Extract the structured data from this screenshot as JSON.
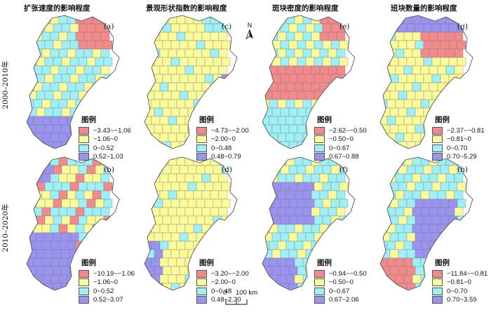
{
  "figure": {
    "columns": [
      {
        "title": "扩张速度的影响程度"
      },
      {
        "title": "景观形状指数的影响程度"
      },
      {
        "title": "斑块密度的影响程度"
      },
      {
        "title": "班块数量的影响程度"
      }
    ],
    "rows": [
      {
        "label": "2000–2010年"
      },
      {
        "label": "2010–2020年"
      }
    ],
    "panels": [
      {
        "letter": "(a)",
        "legend_title": "图例",
        "classes": [
          "−3.43~−1.06",
          "−1.06~0",
          "0~0.52",
          "0.52~1.03"
        ]
      },
      {
        "letter": "(c)",
        "legend_title": "图例",
        "classes": [
          "−4.73~−2.00",
          "−2.00~0",
          "0~0.48",
          "0.48~0.79"
        ]
      },
      {
        "letter": "(e)",
        "legend_title": "图例",
        "classes": [
          "−2.62~−0.50",
          "−0.50~0",
          "0~0.67",
          "0.67~0.88"
        ]
      },
      {
        "letter": "(g)",
        "legend_title": "图例",
        "classes": [
          "−2.37~−0.81",
          "−0.81~0",
          "0~0.70",
          "0.70~5.29"
        ]
      },
      {
        "letter": "(b)",
        "legend_title": "图例",
        "classes": [
          "−10.19~−1.06",
          "−1.06~0",
          "0~0.52",
          "0.52~3.07"
        ]
      },
      {
        "letter": "(d)",
        "legend_title": "图例",
        "classes": [
          "−3.20~−2.00",
          "−2.00~0",
          "0~0.48",
          "0.48~2.30"
        ]
      },
      {
        "letter": "(f)",
        "legend_title": "图例",
        "classes": [
          "−0.94~−0.50",
          "−0.50~0",
          "0~0.67",
          "0.67~2.06"
        ]
      },
      {
        "letter": "(h)",
        "legend_title": "图例",
        "classes": [
          "−11.84~−0.81",
          "−0.81~0",
          "0~0.70",
          "0.70~3.59"
        ]
      }
    ],
    "class_colors": [
      "#f28a8c",
      "#fbfb9a",
      "#9ef0f6",
      "#9b93f0"
    ],
    "north_label": "N",
    "scale": {
      "zero": "0",
      "distance": "100 km"
    }
  }
}
